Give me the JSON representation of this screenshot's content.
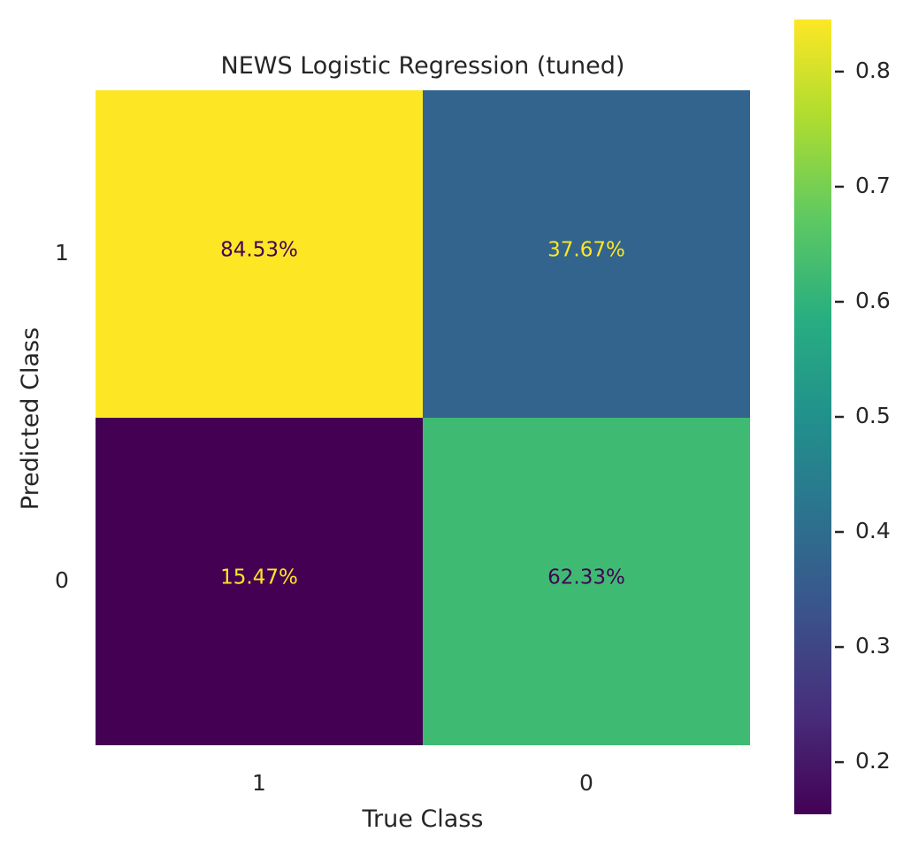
{
  "chart_data": {
    "type": "heatmap",
    "title": "NEWS Logistic Regression (tuned)",
    "xlabel": "True Class",
    "ylabel": "Predicted Class",
    "x_categories": [
      "1",
      "0"
    ],
    "y_categories": [
      "1",
      "0"
    ],
    "values": [
      [
        0.8453,
        0.3767
      ],
      [
        0.1547,
        0.6233
      ]
    ],
    "cell_labels": [
      [
        "84.53%",
        "37.67%"
      ],
      [
        "15.47%",
        "62.33%"
      ]
    ],
    "colormap": "viridis",
    "color_range": [
      0.1547,
      0.8453
    ],
    "colorbar_ticks": [
      0.2,
      0.3,
      0.4,
      0.5,
      0.6,
      0.7,
      0.8
    ],
    "colorbar_tick_labels": [
      "0.2",
      "0.3",
      "0.4",
      "0.5",
      "0.6",
      "0.7",
      "0.8"
    ],
    "grid": false,
    "legend": "colorbar-right"
  },
  "colors": {
    "text": "#262626",
    "cell_label_on_bright": "#440154",
    "cell_label_on_dark": "#fde725"
  }
}
